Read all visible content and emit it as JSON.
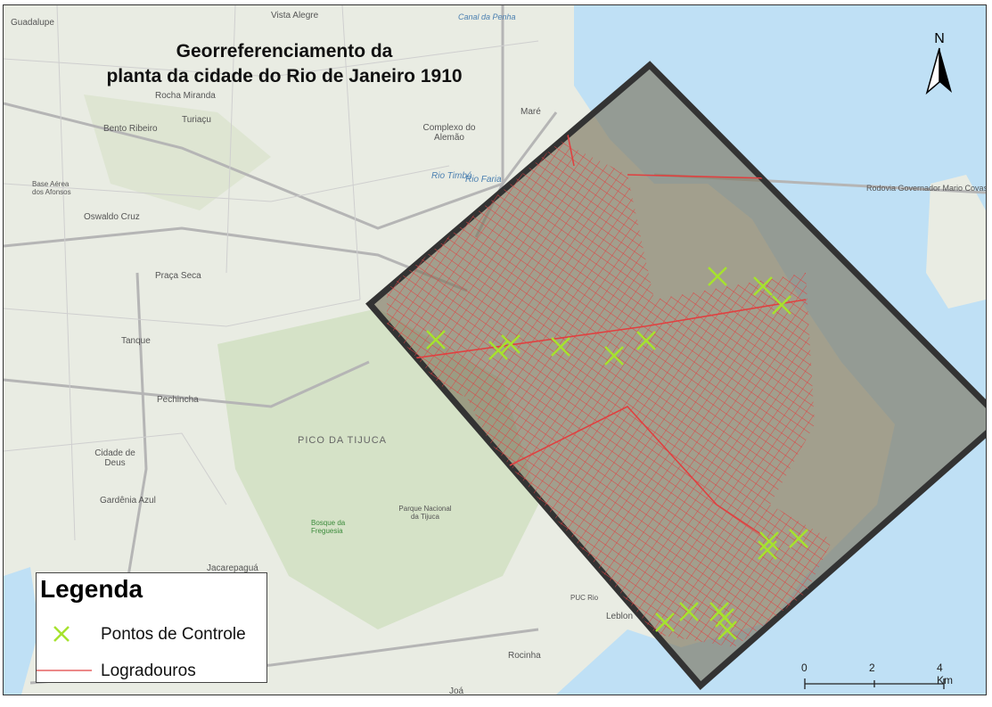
{
  "title": "Georreferenciamento da planta da cidade do Rio de Janeiro 1910",
  "title_lines": [
    "Georreferenciamento da",
    "planta da cidade do Rio de Janeiro 1910"
  ],
  "north_arrow": {
    "label": "N",
    "icon": "north-arrow-icon"
  },
  "legend": {
    "title": "Legenda",
    "items": [
      {
        "label": "Pontos de Controle",
        "symbol": "x-marker",
        "color": "#a6e22e"
      },
      {
        "label": "Logradouros",
        "symbol": "line",
        "color": "#e04040"
      }
    ]
  },
  "scale_bar": {
    "ticks": [
      "0",
      "2",
      "4 Km"
    ]
  },
  "places": [
    {
      "name": "Guadalupe"
    },
    {
      "name": "Vista Alegre"
    },
    {
      "name": "Rocha Miranda"
    },
    {
      "name": "Turiaçu"
    },
    {
      "name": "Bento Ribeiro"
    },
    {
      "name": "Oswaldo Cruz"
    },
    {
      "name": "Praça Seca"
    },
    {
      "name": "Tanque"
    },
    {
      "name": "Pechincha"
    },
    {
      "name": "Cidade de Deus"
    },
    {
      "name": "Gardênia Azul"
    },
    {
      "name": "PICO DA TIJUCA"
    },
    {
      "name": "Complexo do Alemão"
    },
    {
      "name": "Maré"
    },
    {
      "name": "Leblon"
    },
    {
      "name": "Rocinha"
    },
    {
      "name": "Joá"
    },
    {
      "name": "Jacarepaguá"
    },
    {
      "name": "Parque Nacional da Tijuca"
    },
    {
      "name": "Rodovia Governador Mario Covas"
    },
    {
      "name": "Base Aérea dos Afonsos"
    },
    {
      "name": "Rio Timbó"
    },
    {
      "name": "Rio Faria"
    },
    {
      "name": "Bosque da Freguesia"
    },
    {
      "name": "PUC Rio"
    },
    {
      "name": "Canal da Penha"
    }
  ],
  "colors": {
    "water": "#bfe0f5",
    "land": "#e9ece3",
    "park": "#cfe0bf",
    "streets": "#e04040",
    "control_points": "#a6e22e",
    "plan_frame": "#333333"
  }
}
